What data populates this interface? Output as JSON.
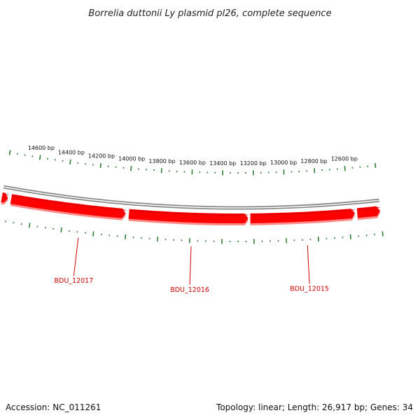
{
  "title": "Borrelia duttonii Ly plasmid pl26, complete sequence",
  "accession": "Accession: NC_011261",
  "summary": "Topology: linear; Length: 26,917 bp; Genes: 34",
  "view": {
    "start_bp": 12400,
    "end_bp": 14800,
    "major_tick_bp": 200,
    "minor_tick_bp": 50
  },
  "ticks": [
    {
      "bp": 14600,
      "label": "14600 bp"
    },
    {
      "bp": 14400,
      "label": "14400 bp"
    },
    {
      "bp": 14200,
      "label": "14200 bp"
    },
    {
      "bp": 14000,
      "label": "14000 bp"
    },
    {
      "bp": 13800,
      "label": "13800 bp"
    },
    {
      "bp": 13600,
      "label": "13600 bp"
    },
    {
      "bp": 13400,
      "label": "13400 bp"
    },
    {
      "bp": 13200,
      "label": "13200 bp"
    },
    {
      "bp": 13000,
      "label": "13000 bp"
    },
    {
      "bp": 12800,
      "label": "12800 bp"
    },
    {
      "bp": 12600,
      "label": "12600 bp"
    }
  ],
  "genes": [
    {
      "start_bp": 14800,
      "end_bp": 14760,
      "label": "",
      "color": "#ff0000"
    },
    {
      "start_bp": 14740,
      "end_bp": 14010,
      "label": "BDU_12017",
      "label_bp": 14290,
      "color": "#ff0000"
    },
    {
      "start_bp": 13990,
      "end_bp": 13235,
      "label": "BDU_12016",
      "label_bp": 13590,
      "color": "#ff0000"
    },
    {
      "start_bp": 13222,
      "end_bp": 12560,
      "label": "BDU_12015",
      "label_bp": 12870,
      "color": "#ff0000"
    },
    {
      "start_bp": 12545,
      "end_bp": 12400,
      "label": "",
      "color": "#ff0000"
    }
  ],
  "colors": {
    "backbone": "#8a8a8a",
    "tick": "#2e7d32",
    "gene": "#ff0000",
    "gene_label": "#cc0000"
  }
}
